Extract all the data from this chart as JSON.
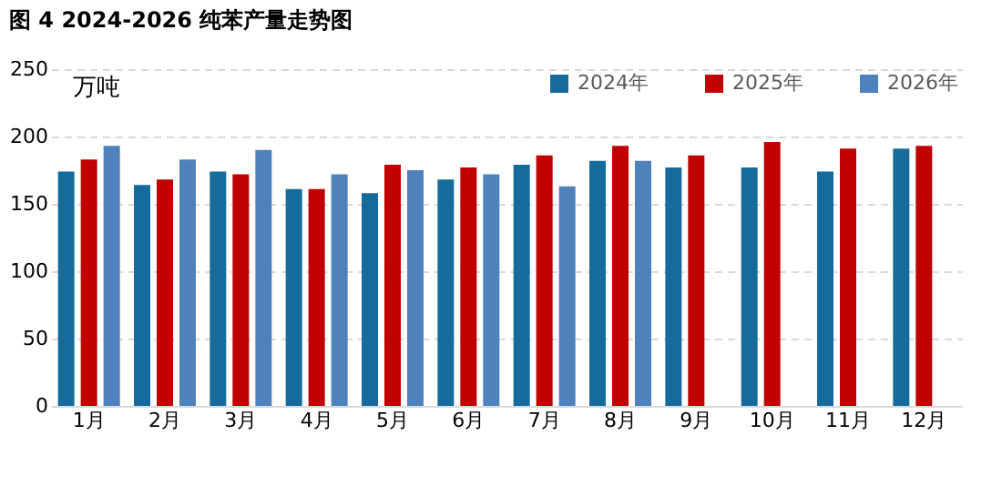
{
  "chart_data": {
    "type": "bar",
    "title": "图 4 2024-2026 纯苯产量走势图",
    "ylabel": "万吨",
    "categories": [
      "1月",
      "2月",
      "3月",
      "4月",
      "5月",
      "6月",
      "7月",
      "8月",
      "9月",
      "10月",
      "11月",
      "12月"
    ],
    "series": [
      {
        "name": "2024年",
        "color": "#156b9b",
        "values": [
          174,
          164,
          174,
          161,
          158,
          168,
          179,
          182,
          177,
          177,
          174,
          191
        ]
      },
      {
        "name": "2025年",
        "color": "#c00000",
        "values": [
          183,
          168,
          172,
          161,
          179,
          177,
          186,
          193,
          186,
          196,
          191,
          193
        ]
      },
      {
        "name": "2026年",
        "color": "#4f81bd",
        "values": [
          193,
          183,
          190,
          172,
          175,
          172,
          163,
          182,
          null,
          null,
          null,
          null
        ]
      }
    ],
    "ylim": [
      0,
      250
    ],
    "yticks": [
      0,
      50,
      100,
      150,
      200,
      250
    ],
    "grid": "y",
    "legend": "top right"
  }
}
